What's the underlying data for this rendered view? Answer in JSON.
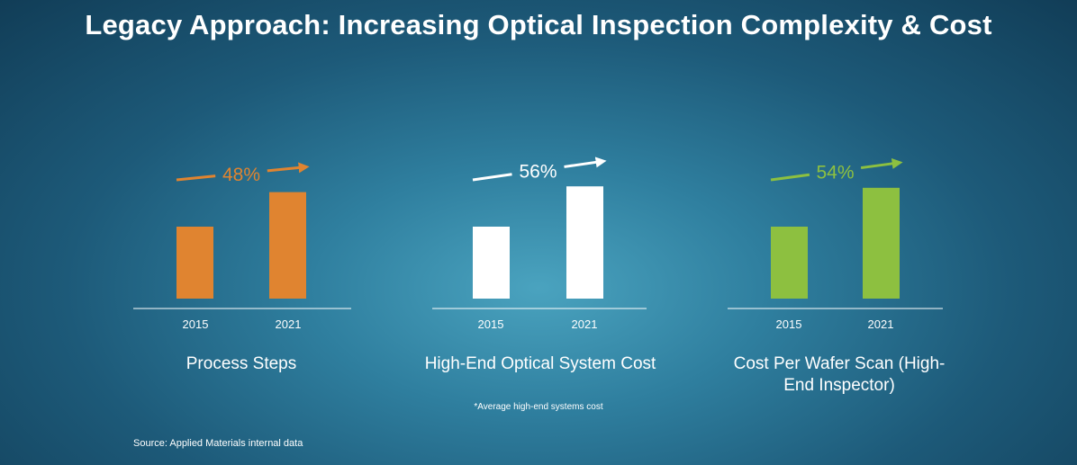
{
  "title": "Legacy Approach: Increasing Optical Inspection Complexity & Cost",
  "source": "Source: Applied Materials internal data",
  "chart_data": [
    {
      "type": "bar",
      "title": "Process Steps",
      "categories": [
        "2015",
        "2021"
      ],
      "values": [
        1.0,
        1.48
      ],
      "growth_label": "48%",
      "color": "#e08430",
      "footnote": ""
    },
    {
      "type": "bar",
      "title": "High-End Optical System Cost",
      "categories": [
        "2015",
        "2021"
      ],
      "values": [
        1.0,
        1.56
      ],
      "growth_label": "56%",
      "color": "#ffffff",
      "footnote": "*Average high-end systems cost"
    },
    {
      "type": "bar",
      "title": "Cost Per Wafer Scan (High-End Inspector)",
      "categories": [
        "2015",
        "2021"
      ],
      "values": [
        1.0,
        1.54
      ],
      "growth_label": "54%",
      "color": "#8dc040",
      "footnote": ""
    }
  ]
}
